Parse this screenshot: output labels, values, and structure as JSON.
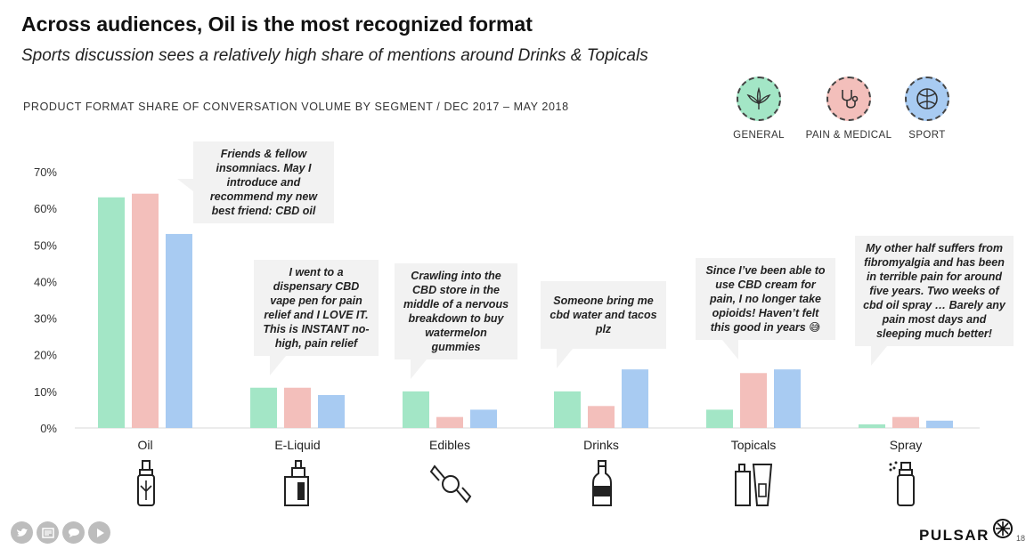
{
  "header": {
    "title": "Across audiences, Oil is the most recognized format",
    "subtitle": "Sports discussion sees a relatively high share of mentions around Drinks & Topicals"
  },
  "legend": [
    {
      "label": "GENERAL",
      "color": "#a3e6c6",
      "icon": "cannabis-leaf-icon"
    },
    {
      "label": "PAIN & MEDICAL",
      "color": "#f3bfbb",
      "icon": "stethoscope-icon"
    },
    {
      "label": "SPORT",
      "color": "#a8cbf2",
      "icon": "ball-icon"
    }
  ],
  "chart_data": {
    "type": "bar",
    "title": "PRODUCT FORMAT SHARE OF CONVERSATION VOLUME BY SEGMENT / DEC 2017 – MAY 2018",
    "categories": [
      "Oil",
      "E-Liquid",
      "Edibles",
      "Drinks",
      "Topicals",
      "Spray"
    ],
    "series": [
      {
        "name": "GENERAL",
        "values": [
          63,
          11,
          10,
          10,
          5,
          1
        ]
      },
      {
        "name": "PAIN & MEDICAL",
        "values": [
          64,
          11,
          3,
          6,
          15,
          3
        ]
      },
      {
        "name": "SPORT",
        "values": [
          53,
          9,
          5,
          16,
          16,
          2
        ]
      }
    ],
    "ylim": [
      0,
      70
    ],
    "yticks": [
      "0%",
      "10%",
      "20%",
      "30%",
      "40%",
      "50%",
      "60%",
      "70%"
    ],
    "grid": false,
    "colors": [
      "#a3e6c6",
      "#f3bfbb",
      "#a8cbf2"
    ]
  },
  "quotes": {
    "oil": "Friends & fellow insomniacs. May I introduce and recommend my new best friend: CBD oil",
    "eliquid": "I went to a dispensary CBD vape pen for pain relief and I LOVE IT. This is INSTANT no-high, pain relief",
    "edibles": "Crawling into the CBD store in the middle of a nervous breakdown to buy watermelon gummies",
    "drinks": "Someone bring me cbd water and tacos plz",
    "topicals": "Since I’ve been able to use CBD cream for pain, I no longer take opioids! Haven’t felt this good in years 😅",
    "spray": "My other half suffers from fibromyalgia and has been in terrible pain for around five years. Two weeks of cbd oil spray … Barely any pain most days and sleeping much better!"
  },
  "footer": {
    "brand": "PULSAR",
    "page_number": "18",
    "social_icons": [
      "twitter-icon",
      "news-icon",
      "chat-icon",
      "play-icon"
    ]
  }
}
